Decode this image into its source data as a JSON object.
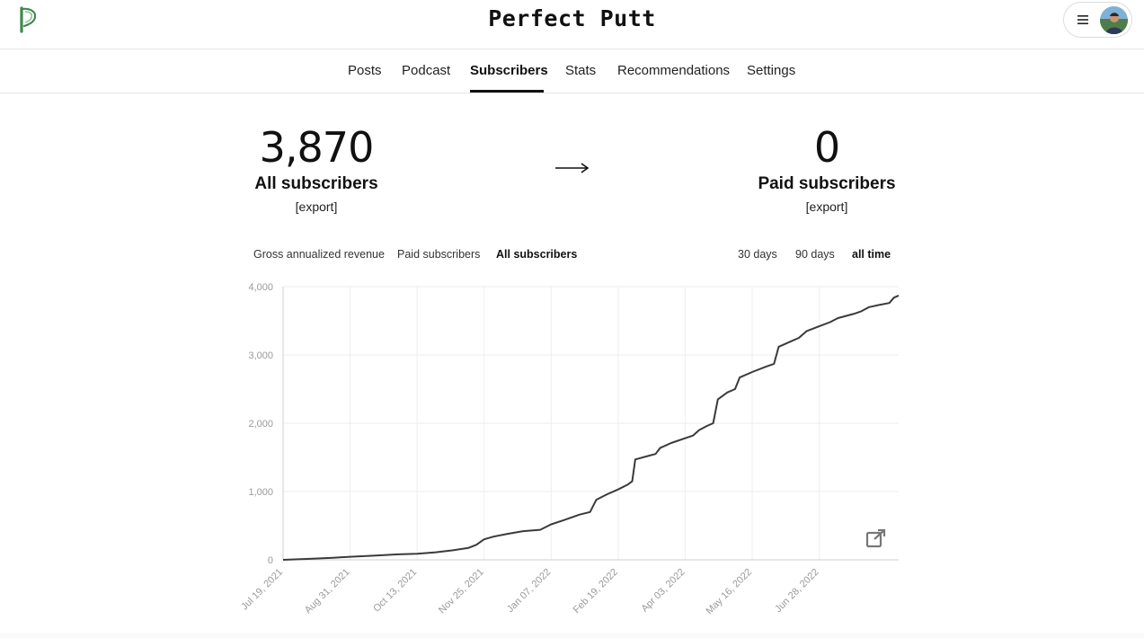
{
  "header": {
    "site_title": "Perfect Putt",
    "logo_icon": "substack-p-logo-icon",
    "menu_icon": "hamburger-menu-icon",
    "avatar": "user-avatar"
  },
  "nav": {
    "tabs": [
      {
        "label": "Posts",
        "active": false
      },
      {
        "label": "Podcast",
        "active": false
      },
      {
        "label": "Subscribers",
        "active": true
      },
      {
        "label": "Stats",
        "active": false
      },
      {
        "label": "Recommendations",
        "active": false
      },
      {
        "label": "Settings",
        "active": false
      }
    ]
  },
  "summary": {
    "all": {
      "value": "3,870",
      "label": "All subscribers",
      "export": "[export]"
    },
    "arrow": "→",
    "paid": {
      "value": "0",
      "label": "Paid subscribers",
      "export": "[export]"
    }
  },
  "filters": {
    "metrics": [
      "Gross annualized revenue",
      "Paid subscribers",
      "All subscribers"
    ],
    "metric_selected": "All subscribers",
    "ranges": [
      "30 days",
      "90 days",
      "all time"
    ],
    "range_selected": "all time"
  },
  "colors": {
    "line": "#3a3a3a",
    "grid": "#eeeeee",
    "axis_text": "#9a9a9a",
    "accent_logo": "#3e8a4c"
  },
  "chart_data": {
    "type": "line",
    "title": "",
    "xlabel": "",
    "ylabel": "",
    "ylim": [
      0,
      4000
    ],
    "yticks": [
      "0",
      "1,000",
      "2,000",
      "3,000",
      "4,000"
    ],
    "ytick_values": [
      0,
      1000,
      2000,
      3000,
      4000
    ],
    "xticks": [
      "Jul 19, 2021",
      "Aug 31, 2021",
      "Oct 13, 2021",
      "Nov 25, 2021",
      "Jan 07, 2022",
      "Feb 19, 2022",
      "Apr 03, 2022",
      "May 16, 2022",
      "Jun 28, 2022"
    ],
    "xlim": [
      "2021-07-19",
      "2022-08-18"
    ],
    "grid": true,
    "series": [
      {
        "name": "",
        "points": [
          [
            "2021-07-19",
            0
          ],
          [
            "2021-08-05",
            15
          ],
          [
            "2021-08-20",
            30
          ],
          [
            "2021-08-31",
            45
          ],
          [
            "2021-09-15",
            60
          ],
          [
            "2021-10-01",
            80
          ],
          [
            "2021-10-13",
            90
          ],
          [
            "2021-10-25",
            110
          ],
          [
            "2021-11-05",
            140
          ],
          [
            "2021-11-15",
            175
          ],
          [
            "2021-11-20",
            220
          ],
          [
            "2021-11-25",
            300
          ],
          [
            "2021-12-01",
            340
          ],
          [
            "2021-12-10",
            380
          ],
          [
            "2021-12-20",
            420
          ],
          [
            "2021-12-31",
            440
          ],
          [
            "2022-01-07",
            520
          ],
          [
            "2022-01-15",
            580
          ],
          [
            "2022-01-25",
            660
          ],
          [
            "2022-02-01",
            700
          ],
          [
            "2022-02-05",
            880
          ],
          [
            "2022-02-12",
            960
          ],
          [
            "2022-02-19",
            1030
          ],
          [
            "2022-02-25",
            1100
          ],
          [
            "2022-02-28",
            1150
          ],
          [
            "2022-03-02",
            1470
          ],
          [
            "2022-03-10",
            1520
          ],
          [
            "2022-03-15",
            1550
          ],
          [
            "2022-03-18",
            1640
          ],
          [
            "2022-03-25",
            1710
          ],
          [
            "2022-04-03",
            1780
          ],
          [
            "2022-04-08",
            1820
          ],
          [
            "2022-04-12",
            1900
          ],
          [
            "2022-04-17",
            1960
          ],
          [
            "2022-04-21",
            2000
          ],
          [
            "2022-04-24",
            2350
          ],
          [
            "2022-04-30",
            2450
          ],
          [
            "2022-05-05",
            2500
          ],
          [
            "2022-05-08",
            2670
          ],
          [
            "2022-05-16",
            2750
          ],
          [
            "2022-05-25",
            2830
          ],
          [
            "2022-05-30",
            2870
          ],
          [
            "2022-06-02",
            3120
          ],
          [
            "2022-06-10",
            3200
          ],
          [
            "2022-06-15",
            3250
          ],
          [
            "2022-06-20",
            3350
          ],
          [
            "2022-06-28",
            3420
          ],
          [
            "2022-07-05",
            3480
          ],
          [
            "2022-07-10",
            3540
          ],
          [
            "2022-07-20",
            3600
          ],
          [
            "2022-07-25",
            3640
          ],
          [
            "2022-07-30",
            3700
          ],
          [
            "2022-08-05",
            3730
          ],
          [
            "2022-08-12",
            3760
          ],
          [
            "2022-08-15",
            3840
          ],
          [
            "2022-08-18",
            3870
          ]
        ]
      }
    ]
  }
}
